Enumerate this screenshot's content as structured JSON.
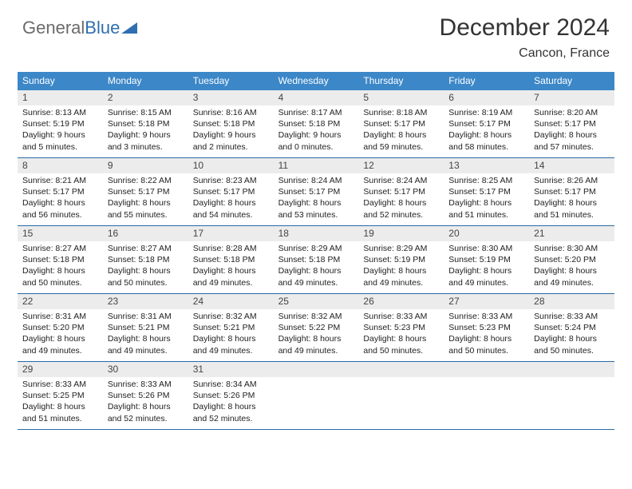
{
  "brand": {
    "part1": "General",
    "part2": "Blue"
  },
  "title": "December 2024",
  "location": "Cancon, France",
  "colors": {
    "header_bg": "#3c87c8",
    "row_divider": "#2b6aa6",
    "daynum_bg": "#ececec",
    "brand_grey": "#6b6b6b",
    "brand_blue": "#2f6fb0"
  },
  "weekdays": [
    "Sunday",
    "Monday",
    "Tuesday",
    "Wednesday",
    "Thursday",
    "Friday",
    "Saturday"
  ],
  "weeks": [
    [
      {
        "n": "1",
        "sr": "8:13 AM",
        "ss": "5:19 PM",
        "dh": "9",
        "dm": "5"
      },
      {
        "n": "2",
        "sr": "8:15 AM",
        "ss": "5:18 PM",
        "dh": "9",
        "dm": "3"
      },
      {
        "n": "3",
        "sr": "8:16 AM",
        "ss": "5:18 PM",
        "dh": "9",
        "dm": "2"
      },
      {
        "n": "4",
        "sr": "8:17 AM",
        "ss": "5:18 PM",
        "dh": "9",
        "dm": "0"
      },
      {
        "n": "5",
        "sr": "8:18 AM",
        "ss": "5:17 PM",
        "dh": "8",
        "dm": "59"
      },
      {
        "n": "6",
        "sr": "8:19 AM",
        "ss": "5:17 PM",
        "dh": "8",
        "dm": "58"
      },
      {
        "n": "7",
        "sr": "8:20 AM",
        "ss": "5:17 PM",
        "dh": "8",
        "dm": "57"
      }
    ],
    [
      {
        "n": "8",
        "sr": "8:21 AM",
        "ss": "5:17 PM",
        "dh": "8",
        "dm": "56"
      },
      {
        "n": "9",
        "sr": "8:22 AM",
        "ss": "5:17 PM",
        "dh": "8",
        "dm": "55"
      },
      {
        "n": "10",
        "sr": "8:23 AM",
        "ss": "5:17 PM",
        "dh": "8",
        "dm": "54"
      },
      {
        "n": "11",
        "sr": "8:24 AM",
        "ss": "5:17 PM",
        "dh": "8",
        "dm": "53"
      },
      {
        "n": "12",
        "sr": "8:24 AM",
        "ss": "5:17 PM",
        "dh": "8",
        "dm": "52"
      },
      {
        "n": "13",
        "sr": "8:25 AM",
        "ss": "5:17 PM",
        "dh": "8",
        "dm": "51"
      },
      {
        "n": "14",
        "sr": "8:26 AM",
        "ss": "5:17 PM",
        "dh": "8",
        "dm": "51"
      }
    ],
    [
      {
        "n": "15",
        "sr": "8:27 AM",
        "ss": "5:18 PM",
        "dh": "8",
        "dm": "50"
      },
      {
        "n": "16",
        "sr": "8:27 AM",
        "ss": "5:18 PM",
        "dh": "8",
        "dm": "50"
      },
      {
        "n": "17",
        "sr": "8:28 AM",
        "ss": "5:18 PM",
        "dh": "8",
        "dm": "49"
      },
      {
        "n": "18",
        "sr": "8:29 AM",
        "ss": "5:18 PM",
        "dh": "8",
        "dm": "49"
      },
      {
        "n": "19",
        "sr": "8:29 AM",
        "ss": "5:19 PM",
        "dh": "8",
        "dm": "49"
      },
      {
        "n": "20",
        "sr": "8:30 AM",
        "ss": "5:19 PM",
        "dh": "8",
        "dm": "49"
      },
      {
        "n": "21",
        "sr": "8:30 AM",
        "ss": "5:20 PM",
        "dh": "8",
        "dm": "49"
      }
    ],
    [
      {
        "n": "22",
        "sr": "8:31 AM",
        "ss": "5:20 PM",
        "dh": "8",
        "dm": "49"
      },
      {
        "n": "23",
        "sr": "8:31 AM",
        "ss": "5:21 PM",
        "dh": "8",
        "dm": "49"
      },
      {
        "n": "24",
        "sr": "8:32 AM",
        "ss": "5:21 PM",
        "dh": "8",
        "dm": "49"
      },
      {
        "n": "25",
        "sr": "8:32 AM",
        "ss": "5:22 PM",
        "dh": "8",
        "dm": "49"
      },
      {
        "n": "26",
        "sr": "8:33 AM",
        "ss": "5:23 PM",
        "dh": "8",
        "dm": "50"
      },
      {
        "n": "27",
        "sr": "8:33 AM",
        "ss": "5:23 PM",
        "dh": "8",
        "dm": "50"
      },
      {
        "n": "28",
        "sr": "8:33 AM",
        "ss": "5:24 PM",
        "dh": "8",
        "dm": "50"
      }
    ],
    [
      {
        "n": "29",
        "sr": "8:33 AM",
        "ss": "5:25 PM",
        "dh": "8",
        "dm": "51"
      },
      {
        "n": "30",
        "sr": "8:33 AM",
        "ss": "5:26 PM",
        "dh": "8",
        "dm": "52"
      },
      {
        "n": "31",
        "sr": "8:34 AM",
        "ss": "5:26 PM",
        "dh": "8",
        "dm": "52"
      },
      null,
      null,
      null,
      null
    ]
  ],
  "labels": {
    "sunrise": "Sunrise:",
    "sunset": "Sunset:",
    "daylight_prefix": "Daylight:",
    "hours_word": "hours",
    "and_word": "and",
    "minutes_word": "minutes."
  }
}
